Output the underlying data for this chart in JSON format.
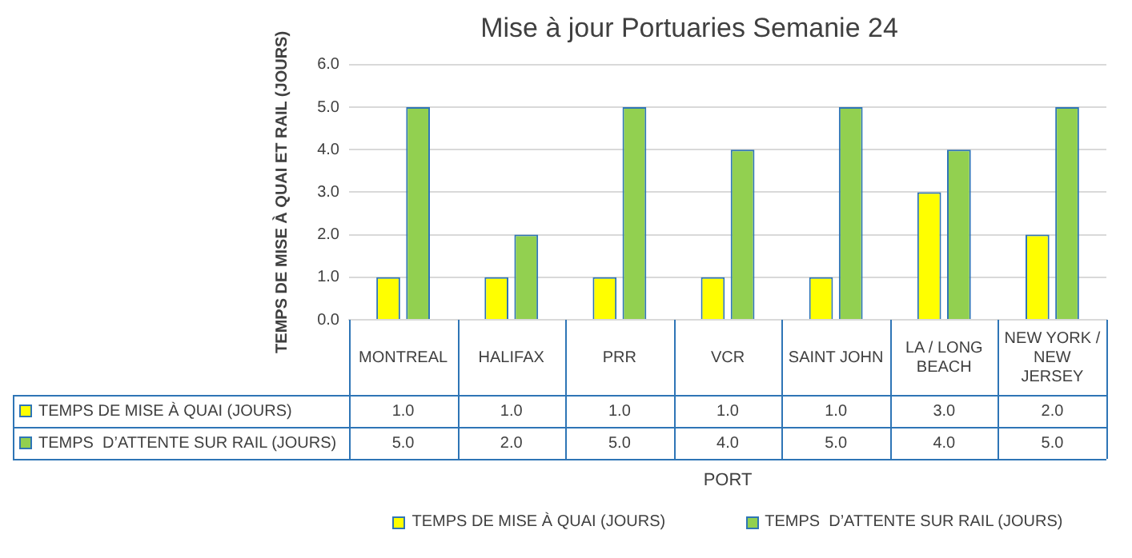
{
  "chart_data": {
    "type": "bar",
    "title": "Mise à jour Portuaries Semanie 24",
    "xlabel": "PORT",
    "ylabel": "TEMPS DE MISE À QUAI ET RAIL (JOURS)",
    "categories": [
      "MONTREAL",
      "HALIFAX",
      "PRR",
      "VCR",
      "SAINT JOHN",
      "LA / LONG BEACH",
      "NEW YORK / NEW JERSEY"
    ],
    "series": [
      {
        "name": "TEMPS DE MISE À QUAI (JOURS)",
        "color": "#ffff00",
        "values": [
          1,
          1,
          1,
          1,
          1,
          3,
          2
        ],
        "value_labels": [
          "1.0",
          "1.0",
          "1.0",
          "1.0",
          "1.0",
          "3.0",
          "2.0"
        ]
      },
      {
        "name": "TEMPS  D’ATTENTE SUR RAIL (JOURS)",
        "color": "#92d050",
        "values": [
          5,
          2,
          5,
          4,
          5,
          4,
          5
        ],
        "value_labels": [
          "5.0",
          "2.0",
          "5.0",
          "4.0",
          "5.0",
          "4.0",
          "5.0"
        ]
      }
    ],
    "ylim": [
      0,
      6
    ],
    "yticks": [
      {
        "value": 0,
        "label": "0.0"
      },
      {
        "value": 1,
        "label": "1.0"
      },
      {
        "value": 2,
        "label": "2.0"
      },
      {
        "value": 3,
        "label": "3.0"
      },
      {
        "value": 4,
        "label": "4.0"
      },
      {
        "value": 5,
        "label": "5.0"
      },
      {
        "value": 6,
        "label": "6.0"
      }
    ],
    "grid": "y",
    "legend": "bottom"
  }
}
